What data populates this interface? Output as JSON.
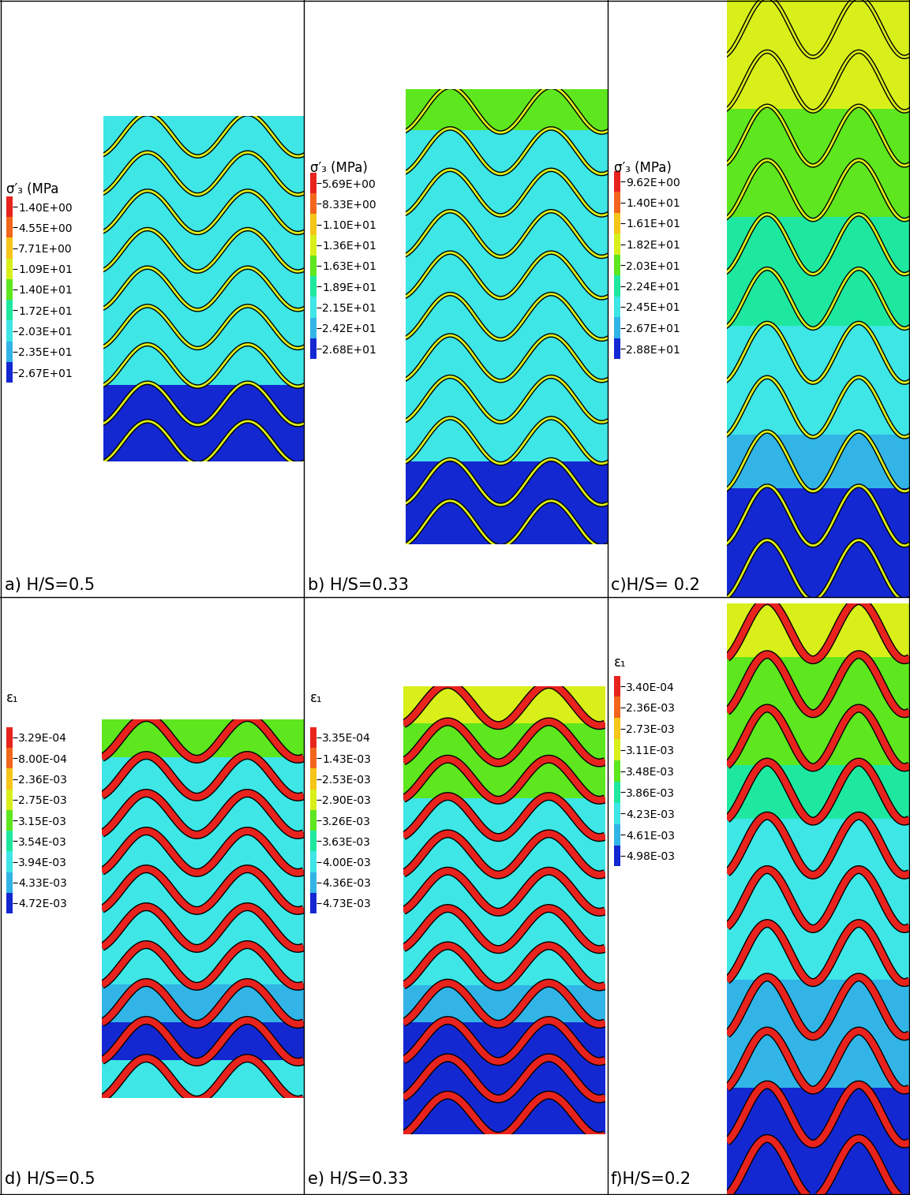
{
  "chart_data": [
    {
      "type": "contour",
      "title": "a) H/S=0.5",
      "field": "stress",
      "colors": [
        "#e8231e",
        "#f2651c",
        "#f5c518",
        "#d9ef1a",
        "#5ee61e",
        "#1ee8a0",
        "#3ee6e6",
        "#32b4e6",
        "#1428d2"
      ],
      "colorbar": {
        "title": "σ′₃ (MPa",
        "ticks": [
          {
            "value": 1.4,
            "label": "1.40E+00"
          },
          {
            "value": 4.55,
            "label": "4.55E+00"
          },
          {
            "value": 7.71,
            "label": "7.71E+00"
          },
          {
            "value": 10.9,
            "label": "1.09E+01"
          },
          {
            "value": 14.0,
            "label": "1.40E+01"
          },
          {
            "value": 17.2,
            "label": "1.72E+01"
          },
          {
            "value": 20.3,
            "label": "2.03E+01"
          },
          {
            "value": 23.5,
            "label": "2.35E+01"
          },
          {
            "value": 26.7,
            "label": "2.67E+01"
          }
        ]
      }
    },
    {
      "type": "contour",
      "title": "b) H/S=0.33",
      "field": "stress",
      "colors": [
        "#e8231e",
        "#f2651c",
        "#f5c518",
        "#d9ef1a",
        "#5ee61e",
        "#1ee8a0",
        "#3ee6e6",
        "#32b4e6",
        "#1428d2"
      ],
      "colorbar": {
        "title": "σ′₃ (MPa)",
        "ticks": [
          {
            "value": 5.69,
            "label": "5.69E+00"
          },
          {
            "value": 8.33,
            "label": "8.33E+00"
          },
          {
            "value": 11.0,
            "label": "1.10E+01"
          },
          {
            "value": 13.6,
            "label": "1.36E+01"
          },
          {
            "value": 16.3,
            "label": "1.63E+01"
          },
          {
            "value": 18.9,
            "label": "1.89E+01"
          },
          {
            "value": 21.5,
            "label": "2.15E+01"
          },
          {
            "value": 24.2,
            "label": "2.42E+01"
          },
          {
            "value": 26.8,
            "label": "2.68E+01"
          }
        ]
      }
    },
    {
      "type": "contour",
      "title": "c)H/S= 0.2",
      "field": "stress",
      "colors": [
        "#e8231e",
        "#f2651c",
        "#f5c518",
        "#d9ef1a",
        "#5ee61e",
        "#1ee8a0",
        "#3ee6e6",
        "#32b4e6",
        "#1428d2"
      ],
      "colorbar": {
        "title": "σ′₃ (MPa)",
        "ticks": [
          {
            "value": 9.62,
            "label": "9.62E+00"
          },
          {
            "value": 14.0,
            "label": "1.40E+01"
          },
          {
            "value": 16.1,
            "label": "1.61E+01"
          },
          {
            "value": 18.2,
            "label": "1.82E+01"
          },
          {
            "value": 20.3,
            "label": "2.03E+01"
          },
          {
            "value": 22.4,
            "label": "2.24E+01"
          },
          {
            "value": 24.5,
            "label": "2.45E+01"
          },
          {
            "value": 26.7,
            "label": "2.67E+01"
          },
          {
            "value": 28.8,
            "label": "2.88E+01"
          }
        ]
      }
    },
    {
      "type": "contour",
      "title": "d) H/S=0.5",
      "field": "strain",
      "colors": [
        "#e8231e",
        "#f2651c",
        "#f5c518",
        "#d9ef1a",
        "#5ee61e",
        "#1ee8a0",
        "#3ee6e6",
        "#32b4e6",
        "#1428d2"
      ],
      "colorbar": {
        "title": "ε₁",
        "ticks": [
          {
            "value": 0.000329,
            "label": "3.29E-04"
          },
          {
            "value": 0.0008,
            "label": "8.00E-04"
          },
          {
            "value": 0.00236,
            "label": "2.36E-03"
          },
          {
            "value": 0.00275,
            "label": "2.75E-03"
          },
          {
            "value": 0.00315,
            "label": "3.15E-03"
          },
          {
            "value": 0.00354,
            "label": "3.54E-03"
          },
          {
            "value": 0.00394,
            "label": "3.94E-03"
          },
          {
            "value": 0.00433,
            "label": "4.33E-03"
          },
          {
            "value": 0.00472,
            "label": "4.72E-03"
          }
        ]
      }
    },
    {
      "type": "contour",
      "title": "e) H/S=0.33",
      "field": "strain",
      "colors": [
        "#e8231e",
        "#f2651c",
        "#f5c518",
        "#d9ef1a",
        "#5ee61e",
        "#1ee8a0",
        "#3ee6e6",
        "#32b4e6",
        "#1428d2"
      ],
      "colorbar": {
        "title": "ε₁",
        "ticks": [
          {
            "value": 0.000335,
            "label": "3.35E-04"
          },
          {
            "value": 0.00143,
            "label": "1.43E-03"
          },
          {
            "value": 0.00253,
            "label": "2.53E-03"
          },
          {
            "value": 0.0029,
            "label": "2.90E-03"
          },
          {
            "value": 0.00326,
            "label": "3.26E-03"
          },
          {
            "value": 0.00363,
            "label": "3.63E-03"
          },
          {
            "value": 0.004,
            "label": "4.00E-03"
          },
          {
            "value": 0.00436,
            "label": "4.36E-03"
          },
          {
            "value": 0.00473,
            "label": "4.73E-03"
          }
        ]
      }
    },
    {
      "type": "contour",
      "title": "f)H/S=0.2",
      "field": "strain",
      "colors": [
        "#e8231e",
        "#f2651c",
        "#f5c518",
        "#d9ef1a",
        "#5ee61e",
        "#1ee8a0",
        "#3ee6e6",
        "#32b4e6",
        "#1428d2"
      ],
      "colorbar": {
        "title": "ε₁",
        "ticks": [
          {
            "value": 0.00034,
            "label": "3.40E-04"
          },
          {
            "value": 0.00236,
            "label": "2.36E-03"
          },
          {
            "value": 0.00273,
            "label": "2.73E-03"
          },
          {
            "value": 0.00311,
            "label": "3.11E-03"
          },
          {
            "value": 0.00348,
            "label": "3.48E-03"
          },
          {
            "value": 0.00386,
            "label": "3.86E-03"
          },
          {
            "value": 0.00423,
            "label": "4.23E-03"
          },
          {
            "value": 0.00461,
            "label": "4.61E-03"
          },
          {
            "value": 0.00498,
            "label": "4.98E-03"
          }
        ]
      }
    }
  ]
}
